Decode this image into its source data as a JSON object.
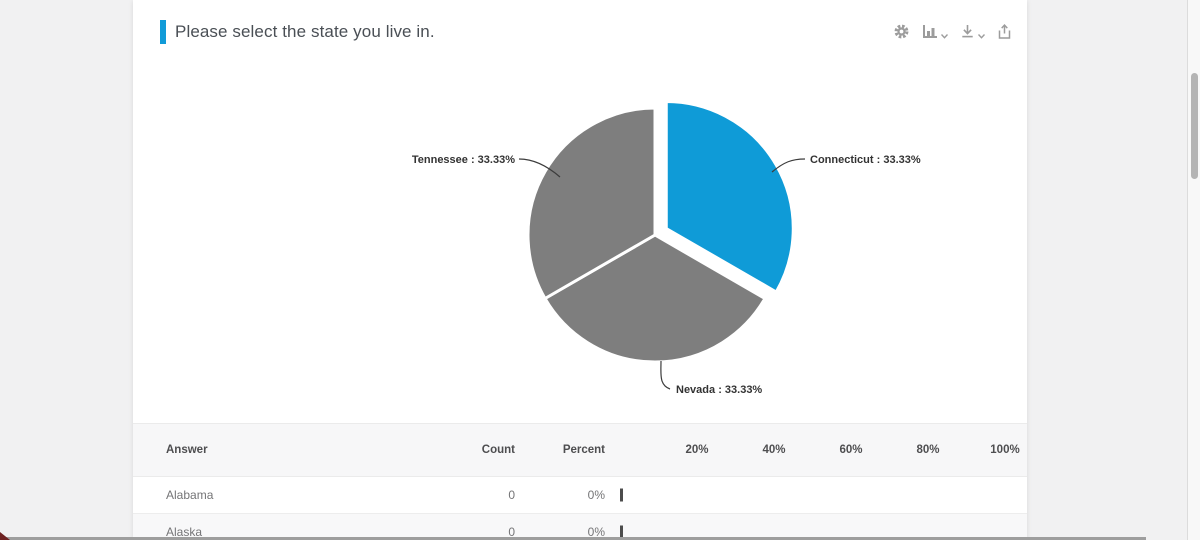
{
  "question": {
    "title": "Please select the state you live in."
  },
  "toolbar": {
    "icons": [
      "settings-gear",
      "chart-type-selector",
      "download",
      "export-share"
    ]
  },
  "chart_data": {
    "type": "pie",
    "title": "Please select the state you live in.",
    "start_angle": "top",
    "direction": "clockwise",
    "legend_position": "none",
    "slices": [
      {
        "label": "Connecticut",
        "value": 33.33,
        "display": "Connecticut : 33.33%",
        "color": "#0f9bd7",
        "exploded": true
      },
      {
        "label": "Nevada",
        "value": 33.33,
        "display": "Nevada : 33.33%",
        "color": "#7e7e7e",
        "exploded": false
      },
      {
        "label": "Tennessee",
        "value": 33.33,
        "display": "Tennessee : 33.33%",
        "color": "#7e7e7e",
        "exploded": false
      }
    ]
  },
  "table": {
    "headers": {
      "answer": "Answer",
      "count": "Count",
      "percent": "Percent",
      "scale": [
        "20%",
        "40%",
        "60%",
        "80%",
        "100%"
      ]
    },
    "rows": [
      {
        "answer": "Alabama",
        "count": "0",
        "percent": "0%",
        "bar_pct": 0
      },
      {
        "answer": "Alaska",
        "count": "0",
        "percent": "0%",
        "bar_pct": 0
      }
    ]
  },
  "colors": {
    "accent_blue": "#119bd8",
    "pie_blue": "#0f9bd7",
    "pie_gray": "#7e7e7e",
    "bar_tick": "#4c4c4c"
  }
}
